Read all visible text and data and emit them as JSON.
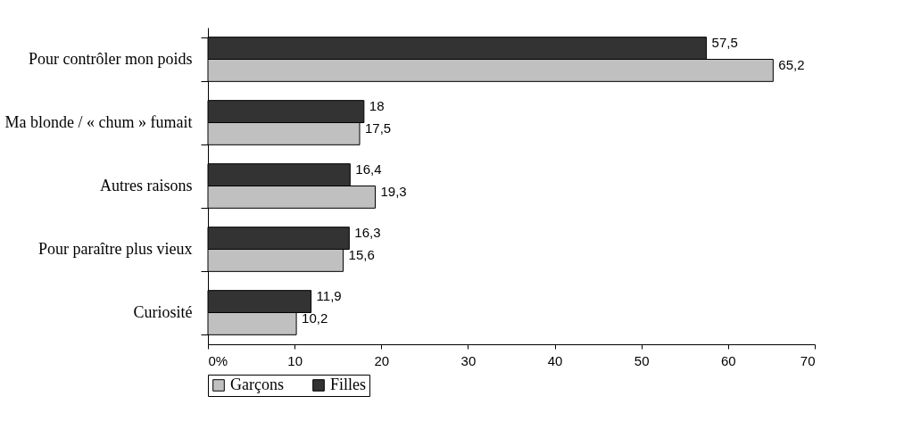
{
  "chart_data": {
    "type": "bar",
    "orientation": "horizontal",
    "categories": [
      "Pour contrôler mon poids",
      "Ma blonde / « chum » fumait",
      "Autres raisons",
      "Pour paraître plus vieux",
      "Curiosité"
    ],
    "series": [
      {
        "name": "Garçons",
        "color": "#c0c0c0",
        "values": [
          65.2,
          17.5,
          19.3,
          15.6,
          10.2
        ],
        "value_labels": [
          "65,2",
          "17,5",
          "19,3",
          "15,6",
          "10,2"
        ]
      },
      {
        "name": "Filles",
        "color": "#333333",
        "values": [
          57.5,
          18,
          16.4,
          16.3,
          11.9
        ],
        "value_labels": [
          "57,5",
          "18",
          "16,4",
          "16,3",
          "11,9"
        ]
      }
    ],
    "xlim": [
      0,
      70
    ],
    "xticks": [
      {
        "value": 0,
        "label": "0%"
      },
      10,
      20,
      30,
      40,
      50,
      60,
      70
    ],
    "grid": false,
    "legend": "bottom"
  }
}
